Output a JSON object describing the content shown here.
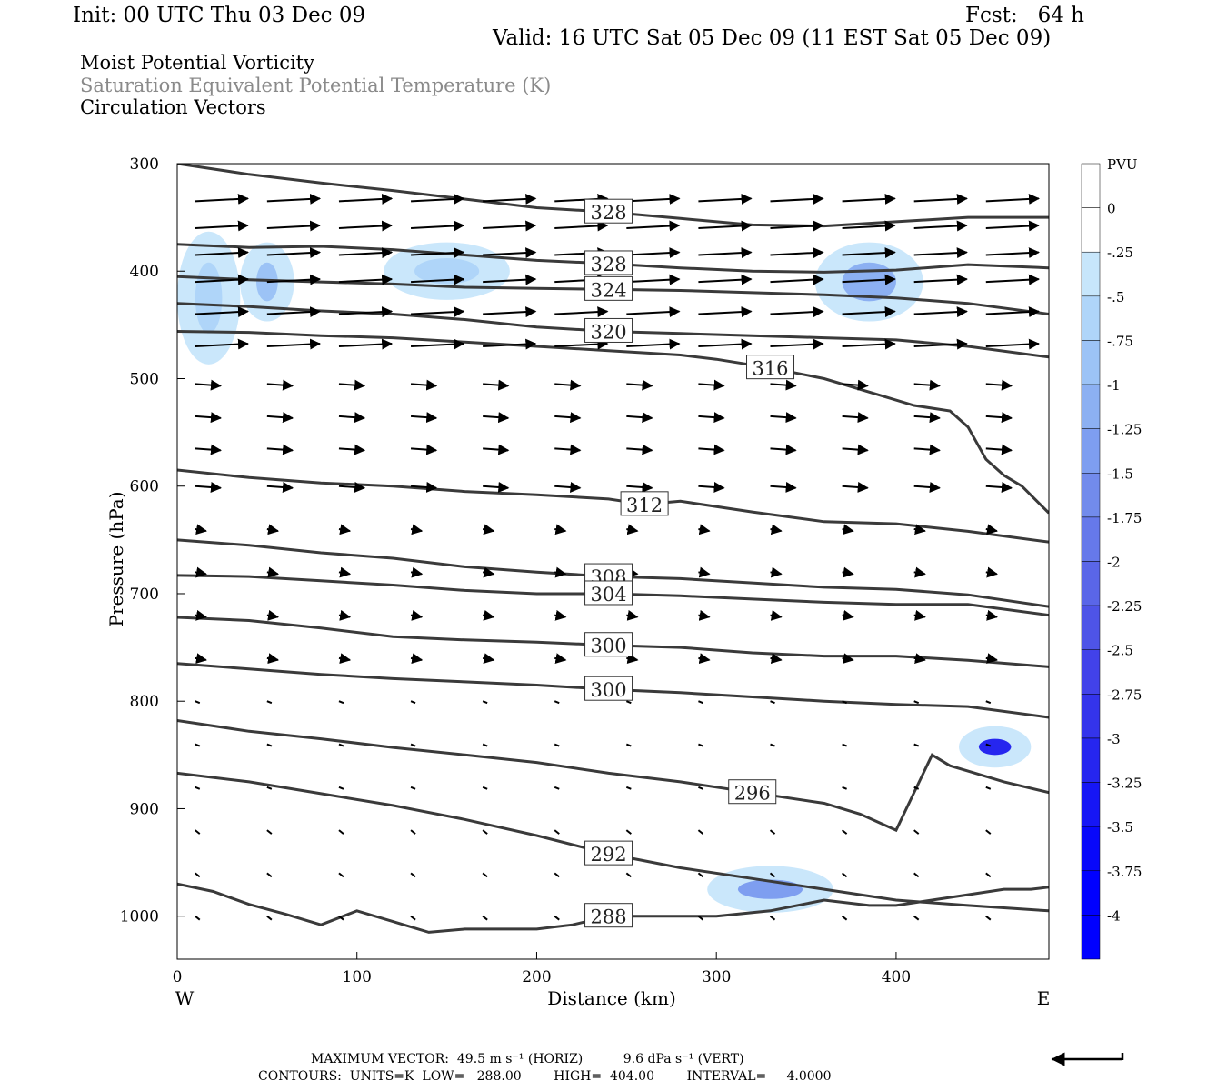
{
  "header": {
    "init": "Init: 00 UTC Thu 03 Dec 09",
    "fcst": "Fcst:   64 h",
    "valid": "Valid: 16 UTC Sat 05 Dec 09 (11 EST Sat 05 Dec 09)",
    "field1": "Moist Potential Vorticity",
    "field2": "Saturation Equivalent Potential Temperature (K)",
    "field3": "Circulation Vectors"
  },
  "footer": {
    "max_vector": "MAXIMUM VECTOR:  49.5 m s⁻¹ (HORIZ)          9.6 dPa s⁻¹ (VERT)",
    "contours": "CONTOURS:  UNITS=K  LOW=   288.00        HIGH=  404.00        INTERVAL=     4.0000"
  },
  "colors": {
    "contour": "#3a3a3a",
    "pv_scale": [
      "#ffffff",
      "#ffffff",
      "#c7e6fb",
      "#afd5f9",
      "#9cc3f6",
      "#8cb0f2",
      "#7e9ef0",
      "#728bec",
      "#6679ea",
      "#5a66e8",
      "#4e54e7",
      "#4242e9",
      "#3434eb",
      "#2626ef",
      "#1616f5",
      "#0808fa",
      "#0000ff"
    ]
  },
  "chart_data": {
    "type": "cross-section",
    "xlabel": "Distance (km)",
    "ylabel": "Pressure (hPa)",
    "x_ticks": [
      0,
      100,
      200,
      300,
      400
    ],
    "y_ticks": [
      300,
      400,
      500,
      600,
      700,
      800,
      900,
      1000
    ],
    "xlim": [
      0,
      485
    ],
    "ylim": [
      300,
      1040
    ],
    "y_reversed": true,
    "left_end": "W",
    "right_end": "E",
    "colorbar": {
      "title": "PVU",
      "levels": [
        "0",
        "-.25",
        "-.5",
        "-.75",
        "-1",
        "-1.25",
        "-1.5",
        "-1.75",
        "-2",
        "-2.25",
        "-2.5",
        "-2.75",
        "-3",
        "-3.25",
        "-3.5",
        "-3.75",
        "-4"
      ]
    },
    "contours": [
      {
        "label": "328",
        "x": [
          0,
          40,
          80,
          120,
          160,
          200,
          240,
          280,
          320,
          360,
          400,
          440,
          485
        ],
        "y": [
          300,
          310,
          318,
          325,
          333,
          341,
          345,
          351,
          357,
          358,
          354,
          350,
          350
        ]
      },
      {
        "label": "328",
        "x": [
          0,
          40,
          80,
          120,
          160,
          200,
          240,
          280,
          320,
          360,
          400,
          440,
          485
        ],
        "y": [
          375,
          378,
          377,
          380,
          385,
          390,
          393,
          397,
          400,
          401,
          399,
          394,
          397
        ]
      },
      {
        "label": "324",
        "x": [
          0,
          40,
          80,
          120,
          160,
          200,
          240,
          280,
          320,
          360,
          400,
          440,
          485
        ],
        "y": [
          405,
          408,
          410,
          412,
          415,
          416,
          417,
          418,
          420,
          422,
          425,
          430,
          440
        ]
      },
      {
        "label": "320",
        "x": [
          0,
          40,
          80,
          120,
          160,
          200,
          240,
          280,
          320,
          360,
          400,
          440,
          485
        ],
        "y": [
          430,
          433,
          437,
          440,
          445,
          452,
          456,
          458,
          460,
          462,
          464,
          470,
          480
        ]
      },
      {
        "label": "316",
        "x": [
          0,
          40,
          80,
          120,
          160,
          200,
          240,
          280,
          300,
          330,
          360,
          390,
          410,
          430,
          440,
          450,
          460,
          470,
          485
        ],
        "y": [
          456,
          457,
          460,
          462,
          466,
          470,
          474,
          478,
          482,
          490,
          500,
          515,
          525,
          530,
          545,
          575,
          590,
          600,
          625
        ]
      },
      {
        "label": "312",
        "x": [
          0,
          40,
          80,
          120,
          160,
          200,
          240,
          260,
          280,
          320,
          360,
          400,
          440,
          485
        ],
        "y": [
          585,
          592,
          597,
          600,
          605,
          608,
          612,
          617,
          614,
          624,
          633,
          635,
          642,
          652
        ]
      },
      {
        "label": "308",
        "x": [
          0,
          40,
          80,
          120,
          160,
          200,
          240,
          280,
          320,
          360,
          400,
          440,
          485
        ],
        "y": [
          650,
          655,
          662,
          667,
          675,
          680,
          684,
          686,
          690,
          694,
          696,
          701,
          712
        ]
      },
      {
        "label": "304",
        "x": [
          0,
          40,
          80,
          120,
          160,
          200,
          240,
          280,
          320,
          360,
          400,
          440,
          485
        ],
        "y": [
          683,
          684,
          688,
          692,
          697,
          700,
          700,
          702,
          705,
          708,
          710,
          710,
          720
        ]
      },
      {
        "label": "300",
        "x": [
          0,
          40,
          80,
          120,
          160,
          200,
          240,
          280,
          320,
          360,
          400,
          440,
          485
        ],
        "y": [
          722,
          725,
          732,
          740,
          743,
          745,
          748,
          750,
          755,
          758,
          758,
          762,
          768
        ]
      },
      {
        "label": "300",
        "x": [
          0,
          40,
          80,
          120,
          160,
          200,
          240,
          280,
          320,
          360,
          400,
          440,
          485
        ],
        "y": [
          765,
          770,
          775,
          779,
          782,
          785,
          789,
          792,
          796,
          800,
          803,
          805,
          815
        ]
      },
      {
        "label": "296",
        "x": [
          0,
          40,
          80,
          120,
          160,
          200,
          240,
          280,
          320,
          360,
          380,
          400,
          420,
          430,
          440,
          460,
          485
        ],
        "y": [
          818,
          828,
          835,
          843,
          850,
          857,
          867,
          875,
          885,
          895,
          905,
          920,
          850,
          860,
          865,
          875,
          885
        ]
      },
      {
        "label": "292",
        "x": [
          0,
          40,
          80,
          120,
          160,
          200,
          240,
          280,
          320,
          360,
          400,
          440,
          485
        ],
        "y": [
          867,
          875,
          886,
          897,
          910,
          925,
          942,
          955,
          965,
          975,
          985,
          990,
          995
        ]
      },
      {
        "label": "288",
        "x": [
          0,
          20,
          40,
          60,
          80,
          100,
          120,
          140,
          160,
          180,
          200,
          220,
          240,
          260,
          280,
          300,
          330,
          360,
          385,
          400,
          420,
          440,
          460,
          475,
          485
        ],
        "y": [
          970,
          977,
          989,
          998,
          1008,
          995,
          1005,
          1015,
          1012,
          1012,
          1012,
          1008,
          1000,
          1000,
          1000,
          1000,
          995,
          985,
          990,
          990,
          985,
          980,
          975,
          975,
          973
        ]
      }
    ],
    "pv_regions": [
      {
        "x": [
          5,
          30
        ],
        "p": [
          370,
          480
        ],
        "level": -0.5
      },
      {
        "x": [
          40,
          60
        ],
        "p": [
          380,
          440
        ],
        "level": -0.75
      },
      {
        "x": [
          120,
          180
        ],
        "p": [
          380,
          420
        ],
        "level": -0.5
      },
      {
        "x": [
          360,
          410
        ],
        "p": [
          380,
          440
        ],
        "level": -1.0
      },
      {
        "x": [
          440,
          470
        ],
        "p": [
          830,
          855
        ],
        "level": -3.0
      },
      {
        "x": [
          300,
          360
        ],
        "p": [
          960,
          990
        ],
        "level": -1.25
      }
    ]
  }
}
